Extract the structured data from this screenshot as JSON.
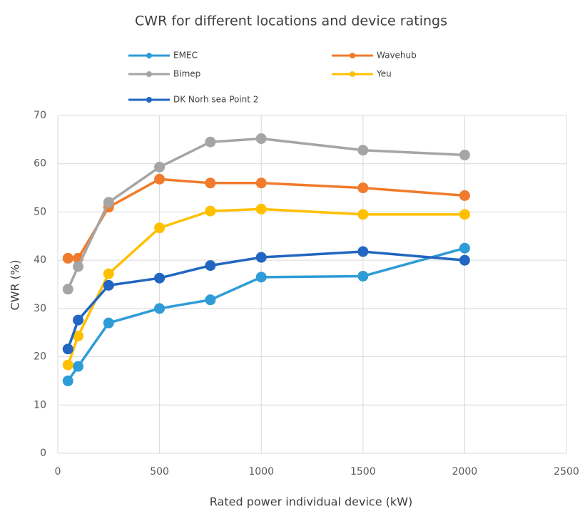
{
  "chart_data": {
    "type": "line",
    "title": "CWR for different locations and device ratings",
    "x_label": "Rated power individual device (kW)",
    "y_label": "CWR (%)",
    "x": [
      50,
      100,
      250,
      500,
      750,
      1000,
      1500,
      2000
    ],
    "xlim": [
      0,
      2500
    ],
    "xticks": [
      0,
      500,
      1000,
      1500,
      2000,
      2500
    ],
    "ylim": [
      0,
      70
    ],
    "yticks": [
      0,
      10,
      20,
      30,
      40,
      50,
      60,
      70
    ],
    "grid": true,
    "legend": "top",
    "series": [
      {
        "name": "EMEC",
        "color": "#2e9cd6",
        "values": [
          15,
          18,
          27,
          30,
          31.8,
          36.5,
          36.7,
          42.5
        ]
      },
      {
        "name": "Wavehub",
        "color": "#f07b2c",
        "values": [
          40.4,
          40.4,
          51,
          56.8,
          56,
          56,
          55,
          53.4
        ]
      },
      {
        "name": "Bimep",
        "color": "#a5a5a5",
        "values": [
          34,
          38.7,
          52,
          59.3,
          64.5,
          65.2,
          62.8,
          61.8
        ]
      },
      {
        "name": "Yeu",
        "color": "#ffc000",
        "values": [
          18.3,
          24.3,
          37.2,
          46.7,
          50.2,
          50.6,
          49.5,
          49.5
        ]
      },
      {
        "name": "DK Norh sea Point 2",
        "color": "#2166c0",
        "values": [
          21.6,
          27.6,
          34.8,
          36.3,
          38.9,
          40.6,
          41.8,
          40
        ]
      }
    ]
  }
}
